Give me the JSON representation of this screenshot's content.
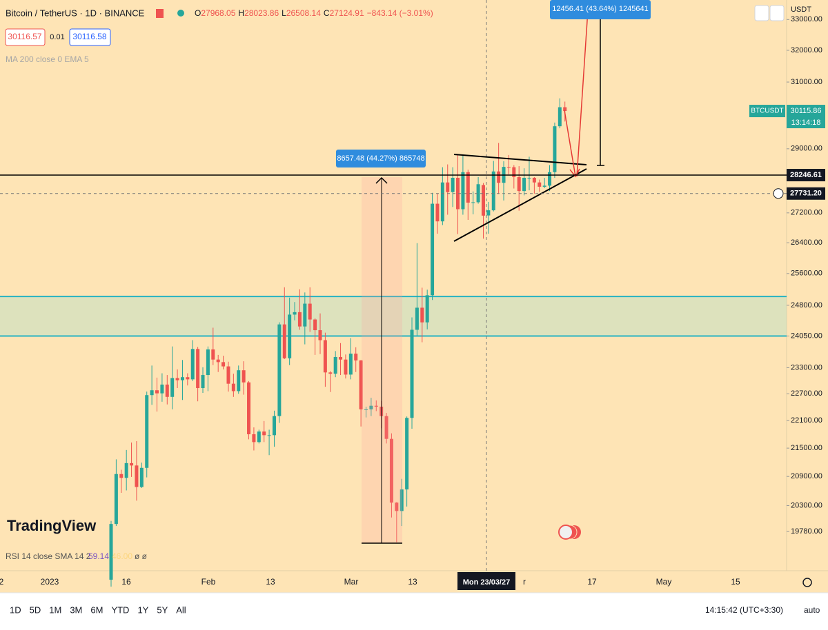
{
  "header": {
    "symbol": "Bitcoin / TetherUS · 1D · BINANCE",
    "ohlc": [
      {
        "label": "O",
        "value": "27968.05"
      },
      {
        "label": "H",
        "value": "28023.86"
      },
      {
        "label": "L",
        "value": "26508.14"
      },
      {
        "label": "C",
        "value": "27124.91"
      }
    ],
    "change": "−843.14 (−3.01%)",
    "sell": "30116.57",
    "spread": "0.01",
    "buy": "30116.58",
    "indicator": "MA 200 close 0 EMA 5"
  },
  "chart_data": {
    "type": "candlestick",
    "log_scale": true,
    "grid": false,
    "up_color": "#26a69a",
    "down_color": "#ef5350",
    "ylim": [
      19020,
      33650
    ],
    "yticks": [
      {
        "value": 33000,
        "label": "33000.00"
      },
      {
        "value": 32000,
        "label": "32000.00"
      },
      {
        "value": 31000,
        "label": "31000.00"
      },
      {
        "value": 29000,
        "label": "29000.00"
      },
      {
        "value": 27200,
        "label": "27200.00"
      },
      {
        "value": 26400,
        "label": "26400.00"
      },
      {
        "value": 25600,
        "label": "25600.00"
      },
      {
        "value": 24800,
        "label": "24800.00"
      },
      {
        "value": 24050,
        "label": "24050.00"
      },
      {
        "value": 23300,
        "label": "23300.00"
      },
      {
        "value": 22700,
        "label": "22700.00"
      },
      {
        "value": 22100,
        "label": "22100.00"
      },
      {
        "value": 21500,
        "label": "21500.00"
      },
      {
        "value": 20900,
        "label": "20900.00"
      },
      {
        "value": 20300,
        "label": "20300.00"
      },
      {
        "value": 19780,
        "label": "19780.00"
      }
    ],
    "xticks": [
      "2",
      "2023",
      "16",
      "Feb",
      "13",
      "Mar",
      "13",
      "r",
      "17",
      "May",
      "15"
    ],
    "currency": "USDT",
    "candles": [
      [
        18850,
        19990,
        18720,
        19930
      ],
      [
        19930,
        21260,
        19890,
        20950
      ],
      [
        20950,
        21040,
        20560,
        20870
      ],
      [
        20870,
        21460,
        20610,
        21180
      ],
      [
        21180,
        21620,
        20890,
        21130
      ],
      [
        21130,
        21650,
        20400,
        20680
      ],
      [
        20680,
        21190,
        20660,
        21080
      ],
      [
        21080,
        22750,
        20880,
        22670
      ],
      [
        22670,
        23350,
        22450,
        22780
      ],
      [
        22780,
        23070,
        22300,
        22710
      ],
      [
        22710,
        23170,
        22520,
        22910
      ],
      [
        22910,
        23130,
        22460,
        22630
      ],
      [
        22630,
        23800,
        22350,
        23060
      ],
      [
        23060,
        23260,
        22830,
        23010
      ],
      [
        23010,
        23480,
        22560,
        23080
      ],
      [
        23080,
        23170,
        22890,
        23030
      ],
      [
        23030,
        23950,
        22990,
        23740
      ],
      [
        23740,
        23790,
        22530,
        22830
      ],
      [
        22830,
        23310,
        22720,
        23130
      ],
      [
        23130,
        23800,
        22760,
        23730
      ],
      [
        23730,
        24250,
        23360,
        23490
      ],
      [
        23490,
        23600,
        23200,
        23430
      ],
      [
        23430,
        23580,
        23260,
        23330
      ],
      [
        23330,
        23440,
        22750,
        22930
      ],
      [
        22930,
        23160,
        22630,
        22760
      ],
      [
        22760,
        23350,
        22700,
        23240
      ],
      [
        23240,
        23450,
        22680,
        22960
      ],
      [
        22960,
        22990,
        21690,
        21800
      ],
      [
        21800,
        21950,
        21450,
        21630
      ],
      [
        21630,
        21900,
        21600,
        21860
      ],
      [
        21860,
        22090,
        21630,
        21780
      ],
      [
        21780,
        21900,
        21350,
        21780
      ],
      [
        21780,
        22320,
        21530,
        22200
      ],
      [
        22200,
        24380,
        22050,
        24330
      ],
      [
        24330,
        25250,
        23500,
        23520
      ],
      [
        23520,
        24990,
        23360,
        24570
      ],
      [
        24570,
        24880,
        24430,
        24630
      ],
      [
        24630,
        25200,
        24200,
        24280
      ],
      [
        24280,
        25120,
        23850,
        24840
      ],
      [
        24840,
        25250,
        24150,
        24450
      ],
      [
        24450,
        24480,
        23600,
        24190
      ],
      [
        24190,
        24600,
        23620,
        23950
      ],
      [
        23950,
        24130,
        22860,
        23190
      ],
      [
        23190,
        23220,
        22740,
        23160
      ],
      [
        23160,
        23690,
        23080,
        23550
      ],
      [
        23550,
        23880,
        23130,
        23490
      ],
      [
        23490,
        23610,
        23050,
        23140
      ],
      [
        23140,
        24000,
        23030,
        23630
      ],
      [
        23630,
        23780,
        23200,
        23470
      ],
      [
        23470,
        23480,
        21970,
        22350
      ],
      [
        22350,
        22410,
        22170,
        22350
      ],
      [
        22350,
        22610,
        22200,
        22430
      ],
      [
        22430,
        22550,
        22310,
        22410
      ],
      [
        22410,
        22540,
        21930,
        22200
      ],
      [
        22200,
        22270,
        21600,
        21700
      ],
      [
        21700,
        21820,
        20060,
        20360
      ],
      [
        20360,
        20370,
        19570,
        20190
      ],
      [
        20190,
        20850,
        19890,
        20630
      ],
      [
        20630,
        22190,
        20280,
        22160
      ],
      [
        22160,
        24500,
        21920,
        24200
      ],
      [
        24200,
        26390,
        24060,
        24740
      ],
      [
        24740,
        25240,
        23900,
        24380
      ],
      [
        24380,
        25190,
        24210,
        25050
      ],
      [
        25050,
        27750,
        24930,
        27450
      ],
      [
        27450,
        27730,
        26640,
        26970
      ],
      [
        26970,
        28470,
        26870,
        28040
      ],
      [
        28040,
        28550,
        27150,
        27770
      ],
      [
        27770,
        28470,
        27360,
        28170
      ],
      [
        28170,
        28850,
        26630,
        27300
      ],
      [
        27300,
        28800,
        27150,
        28330
      ],
      [
        28330,
        28400,
        27010,
        27480
      ],
      [
        27480,
        27790,
        27160,
        27490
      ],
      [
        27490,
        28190,
        27450,
        27990
      ],
      [
        27968.05,
        28023.86,
        26508.14,
        27124.91
      ],
      [
        27130,
        27500,
        26640,
        27270
      ],
      [
        27270,
        28650,
        27240,
        28350
      ],
      [
        28350,
        29170,
        27720,
        28030
      ],
      [
        28030,
        28640,
        27540,
        28480
      ],
      [
        28480,
        28820,
        28270,
        28470
      ],
      [
        28470,
        28530,
        27870,
        28190
      ],
      [
        28190,
        28500,
        27260,
        27800
      ],
      [
        27800,
        28440,
        27680,
        28170
      ],
      [
        28170,
        28770,
        27820,
        28170
      ],
      [
        28170,
        28190,
        27730,
        28040
      ],
      [
        28040,
        28120,
        27780,
        27920
      ],
      [
        27920,
        28170,
        27880,
        27950
      ],
      [
        27950,
        28530,
        27800,
        28330
      ],
      [
        28330,
        29770,
        28170,
        29660
      ],
      [
        29660,
        30500,
        29600,
        30230
      ],
      [
        30230,
        30400,
        29800,
        30115.86
      ]
    ],
    "last_price": {
      "symbol": "BTCUSDT",
      "value": 30115.86,
      "label": "30115.86",
      "countdown": "13:14:18"
    },
    "level": {
      "value": 28246.61,
      "label": "28246.61"
    },
    "crosshair": {
      "value": 27731.2,
      "label": "27731.20",
      "date": "Mon 23/03/27"
    },
    "zone": [
      24050,
      25020
    ],
    "measures": [
      "8657.48 (44.27%) 865748",
      "12456.41 (43.64%) 1245641"
    ]
  },
  "rsi": {
    "label": "RSI 14 close SMA 14 2",
    "value": "59.14",
    "sma": "46.00",
    "rest": "ø ø"
  },
  "watermark": "TradingView",
  "toolbar": {
    "ranges": [
      "1D",
      "5D",
      "1M",
      "3M",
      "6M",
      "YTD",
      "1Y",
      "5Y",
      "All"
    ],
    "time": "14:15:42 (UTC+3:30)",
    "scale": "auto"
  }
}
